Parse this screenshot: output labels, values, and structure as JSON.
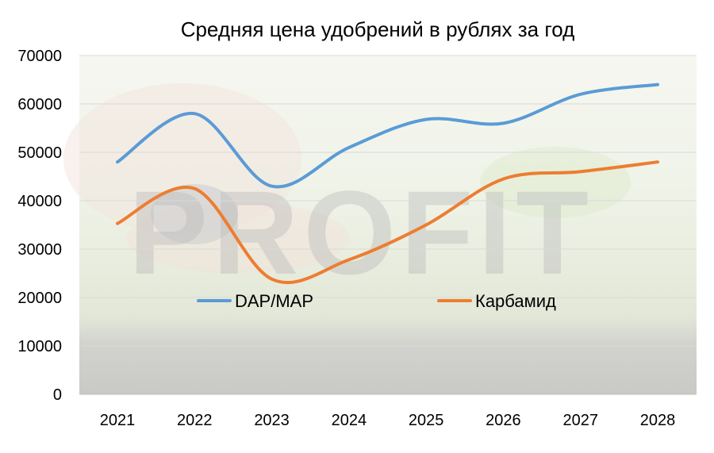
{
  "chart_data": {
    "type": "line",
    "title": "Средняя цена удобрений в рублях за год",
    "xlabel": "",
    "ylabel": "",
    "categories": [
      "2021",
      "2022",
      "2023",
      "2024",
      "2025",
      "2026",
      "2027",
      "2028"
    ],
    "ylim": [
      0,
      70000
    ],
    "yticks": [
      0,
      10000,
      20000,
      30000,
      40000,
      50000,
      60000,
      70000
    ],
    "grid": true,
    "legend_position": "inside-bottom",
    "smooth": true,
    "series": [
      {
        "name": "DAP/MAP",
        "color": "#5B9BD5",
        "values": [
          48000,
          58000,
          43000,
          51000,
          56800,
          56000,
          62000,
          64000
        ]
      },
      {
        "name": "Карбамид",
        "color": "#ED7D31",
        "values": [
          35300,
          42500,
          23800,
          27800,
          35000,
          44500,
          46000,
          48000
        ]
      }
    ],
    "background": "photo of hand sowing fertilizer granules and sprouting seedlings",
    "watermark": "PROFIT"
  }
}
